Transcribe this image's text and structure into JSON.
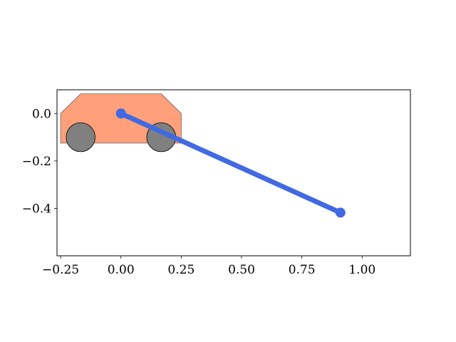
{
  "chart_data": {
    "type": "scatter",
    "title": "",
    "xlabel": "",
    "ylabel": "",
    "xlim": [
      -0.265,
      1.2
    ],
    "ylim": [
      -0.6,
      0.1
    ],
    "grid": false,
    "x_ticks": [
      {
        "value": -0.25,
        "label": "−0.25"
      },
      {
        "value": 0.0,
        "label": "0.00"
      },
      {
        "value": 0.25,
        "label": "0.25"
      },
      {
        "value": 0.5,
        "label": "0.50"
      },
      {
        "value": 0.75,
        "label": "0.75"
      },
      {
        "value": 1.0,
        "label": "1.00"
      }
    ],
    "y_ticks": [
      {
        "value": 0.0,
        "label": "0.0"
      },
      {
        "value": -0.2,
        "label": "−0.2"
      },
      {
        "value": -0.4,
        "label": "−0.4"
      }
    ],
    "cart_body": {
      "points": [
        [
          -0.25,
          -0.125
        ],
        [
          0.25,
          -0.125
        ],
        [
          0.25,
          0.0
        ],
        [
          0.167,
          0.083
        ],
        [
          -0.167,
          0.083
        ],
        [
          -0.25,
          0.0
        ]
      ],
      "fill": "#ffa07a",
      "stroke": "#666666"
    },
    "wheels": [
      {
        "x": -0.167,
        "y": -0.1,
        "r": 0.06
      },
      {
        "x": 0.167,
        "y": -0.1,
        "r": 0.06
      }
    ],
    "wheel_fill": "#808080",
    "pendulum": {
      "x": [
        0.0,
        0.91
      ],
      "y": [
        0.0,
        -0.418
      ],
      "color": "#4169e1"
    }
  }
}
